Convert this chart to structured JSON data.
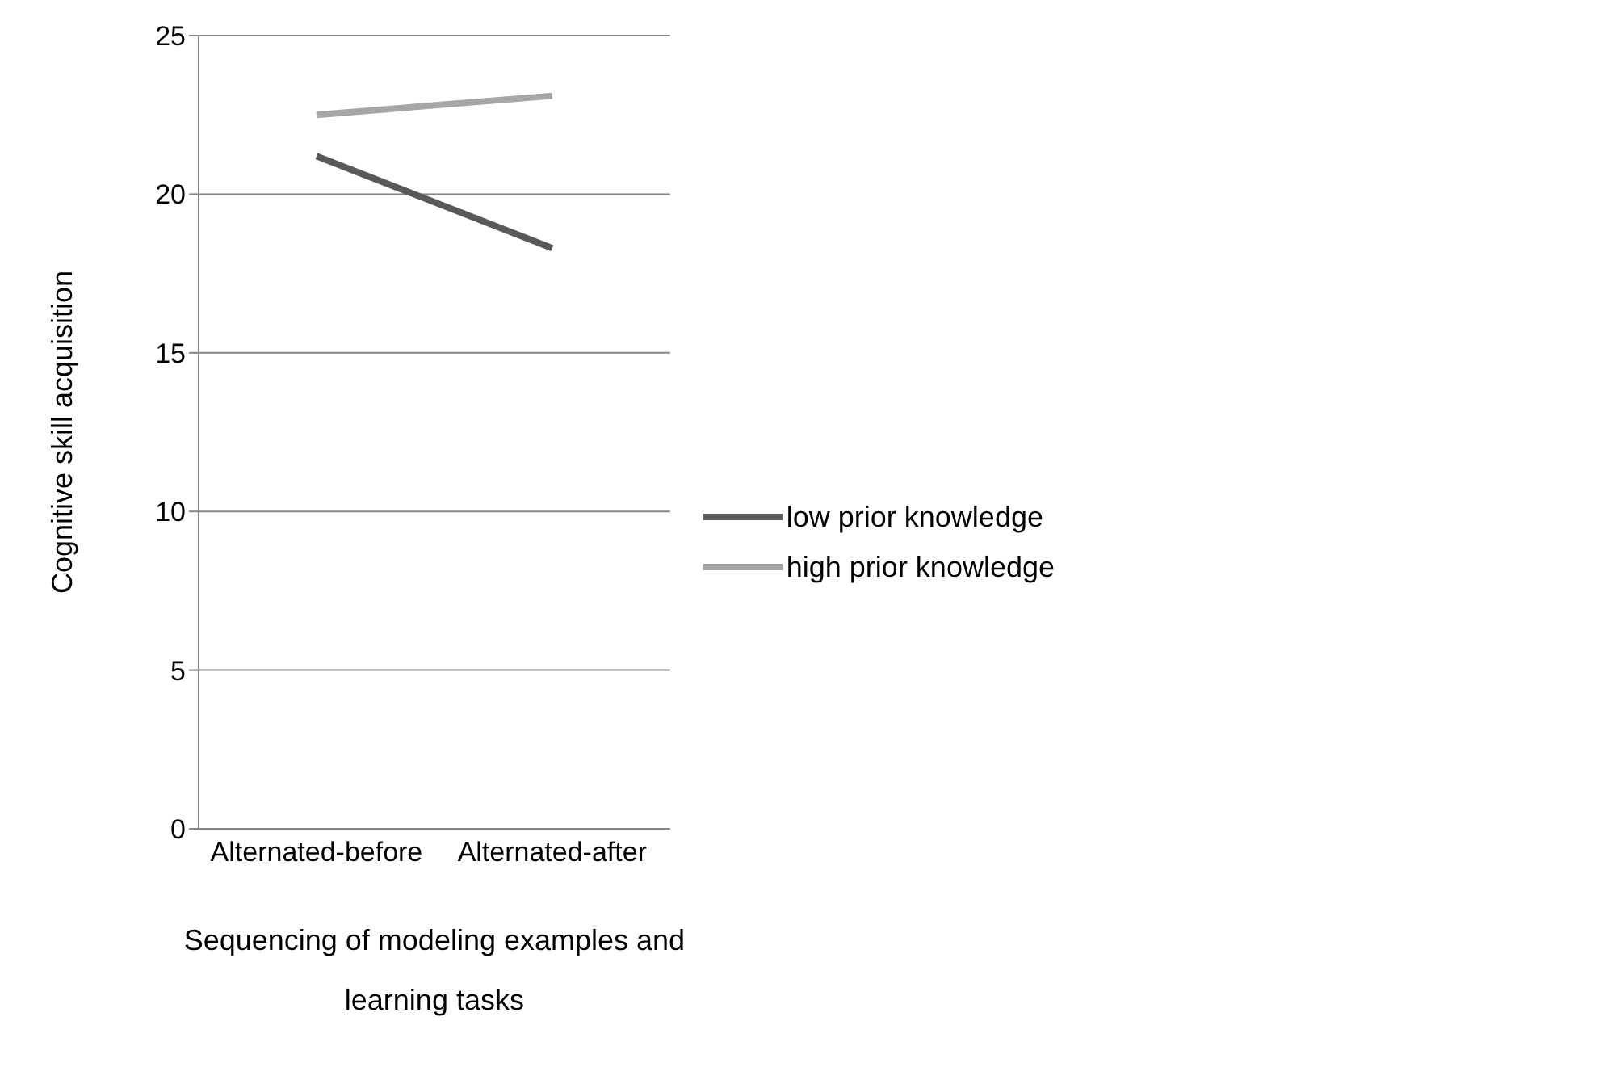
{
  "chart_data": {
    "type": "line",
    "xlabel": "Sequencing of modeling examples and learning tasks",
    "ylabel": "Cognitive skill acquisition",
    "categories": [
      "Alternated-before",
      "Alternated-after"
    ],
    "series": [
      {
        "name": "low prior knowledge",
        "color": "#595959",
        "values": [
          21.2,
          18.3
        ]
      },
      {
        "name": "high prior knowledge",
        "color": "#a6a6a6",
        "values": [
          22.5,
          23.1
        ]
      }
    ],
    "ylim": [
      0,
      25
    ],
    "yticks": [
      0,
      5,
      10,
      15,
      20,
      25
    ],
    "grid": "y",
    "legend": "right",
    "marker": "none",
    "line_style": "solid"
  }
}
